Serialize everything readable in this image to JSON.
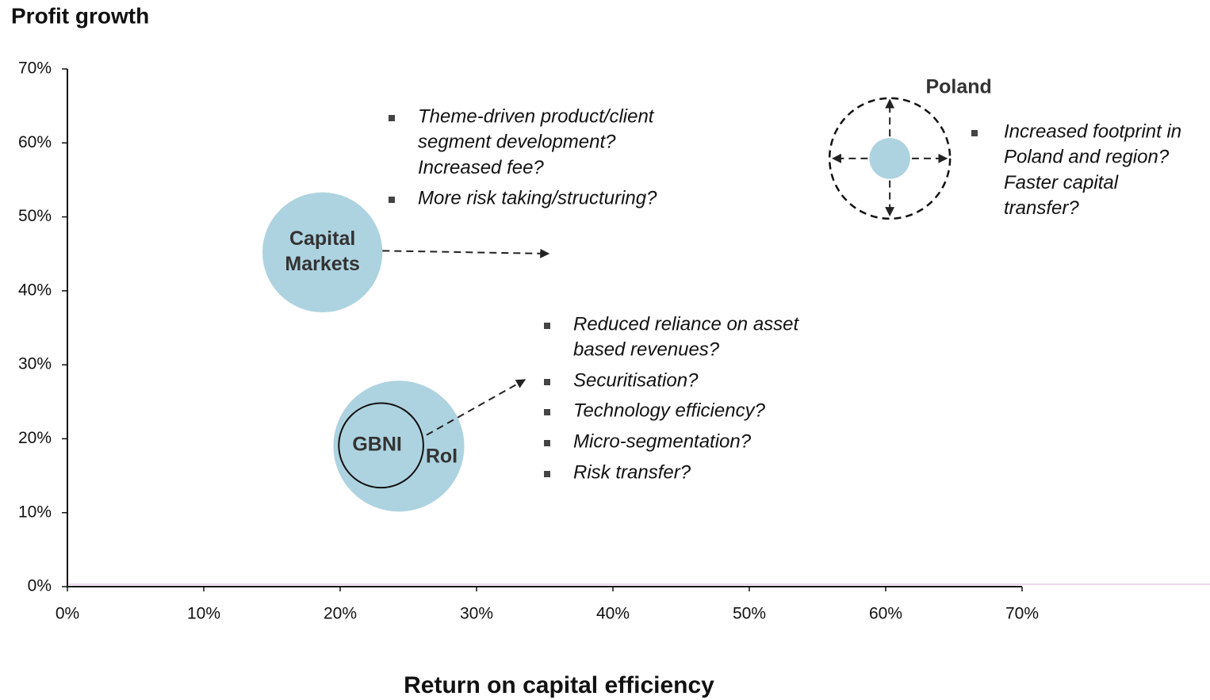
{
  "chart_data": {
    "type": "bubble",
    "title": "Profit growth",
    "xlabel": "Return on capital efficiency",
    "xlim": [
      0,
      70
    ],
    "ylim": [
      0,
      70
    ],
    "xticks": [
      {
        "value": 0,
        "label": "0%"
      },
      {
        "value": 10,
        "label": "10%"
      },
      {
        "value": 20,
        "label": "20%"
      },
      {
        "value": 30,
        "label": "30%"
      },
      {
        "value": 40,
        "label": "40%"
      },
      {
        "value": 50,
        "label": "50%"
      },
      {
        "value": 60,
        "label": "60%"
      },
      {
        "value": 70,
        "label": "70%"
      }
    ],
    "yticks": [
      {
        "value": 0,
        "label": "0%"
      },
      {
        "value": 10,
        "label": "10%"
      },
      {
        "value": 20,
        "label": "20%"
      },
      {
        "value": 30,
        "label": "30%"
      },
      {
        "value": 40,
        "label": "40%"
      },
      {
        "value": 50,
        "label": "50%"
      },
      {
        "value": 60,
        "label": "60%"
      },
      {
        "value": 70,
        "label": "70%"
      }
    ],
    "bubbles": [
      {
        "label": [
          "Capital",
          "Markets"
        ],
        "x": 18.7,
        "y": 45.2,
        "size": 4.4,
        "color": "#aed3e0"
      },
      {
        "label": [
          "RoI"
        ],
        "x": 24.3,
        "y": 19.0,
        "size": 4.8,
        "color": "#aed3e0"
      },
      {
        "label": [
          "GBNI"
        ],
        "x": 23.0,
        "y": 19.1,
        "size": 3.1,
        "color": "none"
      },
      {
        "label": [
          "Poland"
        ],
        "x": 60.3,
        "y": 57.9,
        "size": 1.5,
        "color": "#aed3e0"
      }
    ],
    "notes": [
      [
        [
          "Theme-driven product/client",
          "segment development?",
          "Increased fee?"
        ],
        [
          "More risk taking/structuring?"
        ]
      ],
      [
        [
          "Reduced reliance on asset",
          "based revenues?"
        ],
        [
          "Securitisation?"
        ],
        [
          "Technology efficiency?"
        ],
        [
          "Micro-segmentation?"
        ],
        [
          "Risk transfer?"
        ]
      ],
      [
        [
          "Increased footprint in",
          "Poland and region?",
          "Faster capital",
          "transfer?"
        ]
      ]
    ]
  }
}
